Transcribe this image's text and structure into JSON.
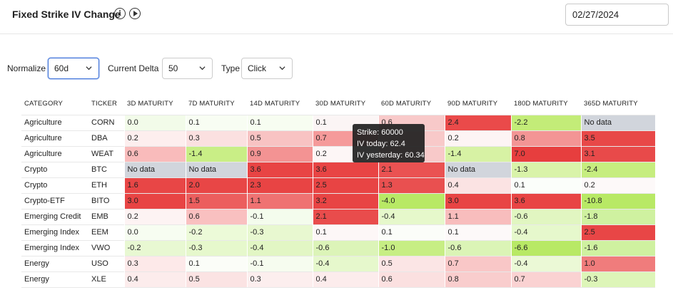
{
  "header": {
    "title": "Fixed Strike IV Change",
    "date": "02/27/2024"
  },
  "controls": {
    "normalize_label": "Normalize",
    "normalize_value": "60d",
    "delta_label": "Current Delta",
    "delta_value": "50",
    "type_label": "Type",
    "type_value": "Click"
  },
  "table": {
    "columns": [
      "CATEGORY",
      "TICKER",
      "3D MATURITY",
      "7D MATURITY",
      "14D MATURITY",
      "30D MATURITY",
      "60D MATURITY",
      "90D MATURITY",
      "180D MATURITY",
      "365D MATURITY"
    ],
    "rows": [
      {
        "category": "Agriculture",
        "ticker": "CORN",
        "values": [
          "0.0",
          "0.1",
          "0.1",
          "0.1",
          "0.6",
          "2.4",
          "-2.2",
          "No data"
        ]
      },
      {
        "category": "Agriculture",
        "ticker": "DBA",
        "values": [
          "0.2",
          "0.3",
          "0.5",
          "0.7",
          "",
          "0.2",
          "0.8",
          "3.5"
        ]
      },
      {
        "category": "Agriculture",
        "ticker": "WEAT",
        "values": [
          "0.6",
          "-1.4",
          "0.9",
          "0.2",
          "",
          "-1.4",
          "7.0",
          "3.1"
        ]
      },
      {
        "category": "Crypto",
        "ticker": "BTC",
        "values": [
          "No data",
          "No data",
          "3.6",
          "3.6",
          "2.1",
          "No data",
          "-1.3",
          "-2.4"
        ]
      },
      {
        "category": "Crypto",
        "ticker": "ETH",
        "values": [
          "1.6",
          "2.0",
          "2.3",
          "2.5",
          "1.3",
          "0.4",
          "0.1",
          "0.2"
        ]
      },
      {
        "category": "Crypto-ETF",
        "ticker": "BITO",
        "values": [
          "3.0",
          "1.5",
          "1.1",
          "3.2",
          "-4.0",
          "3.0",
          "3.6",
          "-10.8"
        ]
      },
      {
        "category": "Emerging Credit",
        "ticker": "EMB",
        "values": [
          "0.2",
          "0.6",
          "-0.1",
          "2.1",
          "-0.4",
          "1.1",
          "-0.6",
          "-1.8"
        ]
      },
      {
        "category": "Emerging Index",
        "ticker": "EEM",
        "values": [
          "0.0",
          "-0.2",
          "-0.3",
          "0.1",
          "0.1",
          "0.1",
          "-0.4",
          "2.5"
        ]
      },
      {
        "category": "Emerging Index",
        "ticker": "VWO",
        "values": [
          "-0.2",
          "-0.3",
          "-0.4",
          "-0.6",
          "-1.0",
          "-0.6",
          "-6.6",
          "-1.6"
        ]
      },
      {
        "category": "Energy",
        "ticker": "USO",
        "values": [
          "0.3",
          "0.1",
          "-0.1",
          "-0.4",
          "0.5",
          "0.7",
          "-0.4",
          "1.0"
        ]
      },
      {
        "category": "Energy",
        "ticker": "XLE",
        "values": [
          "0.4",
          "0.5",
          "0.3",
          "0.4",
          "0.6",
          "0.8",
          "0.7",
          "-0.3"
        ]
      }
    ],
    "colors": [
      [
        "#f2fbe9",
        "#f8fdf3",
        "#f7fdf1",
        "#fbf5f5",
        "#f8c9c9",
        "#ea4a4a",
        "#c3ec78",
        "#d1d5dc"
      ],
      [
        "#fdeeee",
        "#fbe0e0",
        "#f8c3c3",
        "#f59a9a",
        "#f8c9c9",
        "#fdf4f4",
        "#f39595",
        "#e84848"
      ],
      [
        "#f9bbbb",
        "#c9ee86",
        "#f39393",
        "#fdf6f6",
        "#f8c9c9",
        "#d7f2a4",
        "#e73e3e",
        "#e84a4a"
      ],
      [
        "#d1d5dc",
        "#d1d5dc",
        "#e84444",
        "#e84444",
        "#ea5252",
        "#d1d5dc",
        "#d9f3a9",
        "#c6ed7f"
      ],
      [
        "#e84646",
        "#e84646",
        "#e84444",
        "#e84444",
        "#e95050",
        "#fbe3e3",
        "#fbfefa",
        "#fdf9f9"
      ],
      [
        "#e84444",
        "#ec5e5e",
        "#ef7272",
        "#e84444",
        "#b8e965",
        "#e84444",
        "#e84444",
        "#b8e965"
      ],
      [
        "#fdf3f3",
        "#f9c0c0",
        "#f4fced",
        "#e94c4c",
        "#e6f8cb",
        "#f8bdbd",
        "#e1f6c1",
        "#cff1a0"
      ],
      [
        "#f7fdf1",
        "#ecfad8",
        "#e8f8d0",
        "#fdf7f7",
        "#fbfdf9",
        "#fdf9f9",
        "#e6f8cc",
        "#e84646"
      ],
      [
        "#e8f8d2",
        "#e6f8cc",
        "#e2f6c4",
        "#dcf4b8",
        "#c7ee84",
        "#dbf4b6",
        "#b8e965",
        "#cff1a0"
      ],
      [
        "#fde9e9",
        "#fbfdf8",
        "#f6fcef",
        "#e6f8cc",
        "#fbe5e5",
        "#f9c7c7",
        "#ebf9d6",
        "#f07c7c"
      ],
      [
        "#fcecec",
        "#fbe3e3",
        "#fceeee",
        "#fcecec",
        "#fbe0e0",
        "#f9cdcd",
        "#fad2d2",
        "#ddf5b8"
      ]
    ]
  },
  "tooltip": {
    "line1": "Strike: 60000",
    "line2": "IV today: 62.4",
    "line3": "IV yesterday: 60.34"
  }
}
